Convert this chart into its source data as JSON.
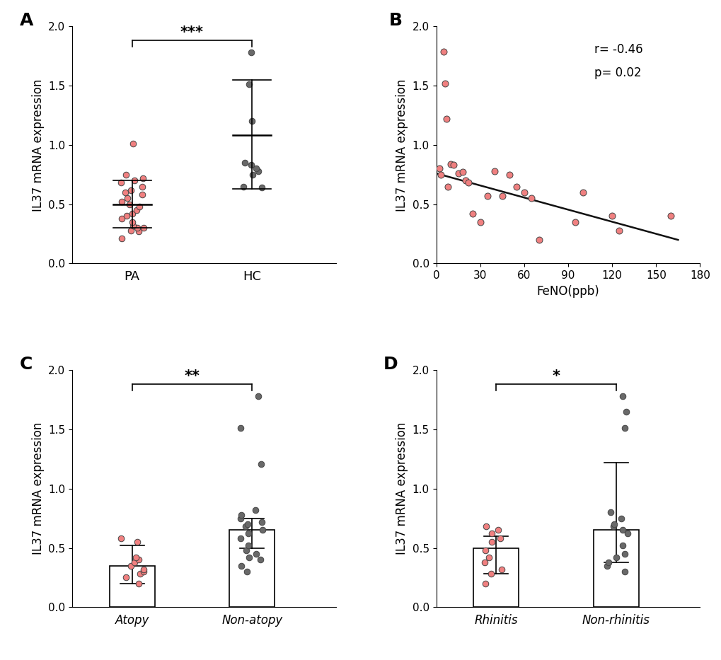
{
  "panel_A": {
    "label": "A",
    "PA_points": [
      0.21,
      0.27,
      0.28,
      0.3,
      0.3,
      0.32,
      0.35,
      0.38,
      0.4,
      0.42,
      0.45,
      0.48,
      0.5,
      0.52,
      0.55,
      0.58,
      0.6,
      0.62,
      0.65,
      0.68,
      0.7,
      0.72,
      0.75,
      1.01
    ],
    "HC_points": [
      0.64,
      0.65,
      0.75,
      0.78,
      0.8,
      0.83,
      0.85,
      1.2,
      1.51,
      1.78
    ],
    "PA_mean": 0.5,
    "PA_sd_upper": 0.7,
    "PA_sd_lower": 0.3,
    "HC_mean": 1.08,
    "HC_sd_upper": 1.55,
    "HC_sd_lower": 0.63,
    "xlabel_PA": "PA",
    "xlabel_HC": "HC",
    "ylabel": "IL37 mRNA expression",
    "ylim": [
      0.0,
      2.0
    ],
    "yticks": [
      0.0,
      0.5,
      1.0,
      1.5,
      2.0
    ],
    "significance": "***",
    "color_PA": "#F08080",
    "color_HC": "#696969"
  },
  "panel_B": {
    "label": "B",
    "x": [
      2,
      3,
      5,
      6,
      7,
      8,
      10,
      12,
      15,
      18,
      20,
      22,
      25,
      30,
      35,
      40,
      45,
      50,
      55,
      60,
      65,
      70,
      95,
      100,
      120,
      125,
      160
    ],
    "y": [
      0.8,
      0.75,
      1.79,
      1.52,
      1.22,
      0.65,
      0.84,
      0.83,
      0.76,
      0.77,
      0.7,
      0.68,
      0.42,
      0.35,
      0.57,
      0.78,
      0.57,
      0.75,
      0.65,
      0.6,
      0.55,
      0.2,
      0.35,
      0.6,
      0.4,
      0.28,
      0.4
    ],
    "xlabel": "FeNO(ppb)",
    "ylabel": "IL37 mRNA expression",
    "ylim": [
      0.0,
      2.0
    ],
    "yticks": [
      0.0,
      0.5,
      1.0,
      1.5,
      2.0
    ],
    "xlim": [
      0,
      180
    ],
    "xticks": [
      0,
      30,
      60,
      90,
      120,
      150,
      180
    ],
    "r_value": "r= -0.46",
    "p_value": "p= 0.02",
    "line_slope": -0.0034,
    "line_intercept": 0.76,
    "color_points": "#F08080"
  },
  "panel_C": {
    "label": "C",
    "atopy_points": [
      0.2,
      0.25,
      0.28,
      0.3,
      0.32,
      0.35,
      0.38,
      0.4,
      0.42,
      0.55,
      0.58
    ],
    "nonatopy_points": [
      0.3,
      0.35,
      0.4,
      0.42,
      0.45,
      0.48,
      0.52,
      0.58,
      0.62,
      0.65,
      0.68,
      0.7,
      0.72,
      0.75,
      0.78,
      0.82,
      1.21,
      1.51,
      1.78
    ],
    "atopy_mean": 0.35,
    "atopy_sd_upper": 0.52,
    "atopy_sd_lower": 0.2,
    "nonatopy_mean": 0.65,
    "nonatopy_sd_upper": 0.75,
    "nonatopy_sd_lower": 0.5,
    "xlabel_atopy": "Atopy",
    "xlabel_nonatopy": "Non-atopy",
    "ylabel": "IL37 mRNA expression",
    "ylim": [
      0.0,
      2.0
    ],
    "yticks": [
      0.0,
      0.5,
      1.0,
      1.5,
      2.0
    ],
    "significance": "**",
    "color_atopy": "#F08080",
    "color_nonatopy": "#696969"
  },
  "panel_D": {
    "label": "D",
    "rhinitis_points": [
      0.2,
      0.28,
      0.32,
      0.38,
      0.42,
      0.48,
      0.55,
      0.58,
      0.62,
      0.65,
      0.68
    ],
    "nonrhinitis_points": [
      0.3,
      0.35,
      0.38,
      0.42,
      0.45,
      0.52,
      0.62,
      0.65,
      0.68,
      0.7,
      0.75,
      0.8,
      1.51,
      1.65,
      1.78
    ],
    "rhinitis_mean": 0.5,
    "rhinitis_sd_upper": 0.6,
    "rhinitis_sd_lower": 0.28,
    "nonrhinitis_mean": 0.65,
    "nonrhinitis_sd_upper": 1.22,
    "nonrhinitis_sd_lower": 0.38,
    "xlabel_rhinitis": "Rhinitis",
    "xlabel_nonrhinitis": "Non-rhinitis",
    "ylabel": "IL37 mRNA expression",
    "ylim": [
      0.0,
      2.0
    ],
    "yticks": [
      0.0,
      0.5,
      1.0,
      1.5,
      2.0
    ],
    "significance": "*",
    "color_rhinitis": "#F08080",
    "color_nonrhinitis": "#696969"
  },
  "figure_bg": "#ffffff",
  "font_size_label": 18,
  "font_size_tick": 11,
  "font_size_axis": 12,
  "font_size_sig": 15
}
